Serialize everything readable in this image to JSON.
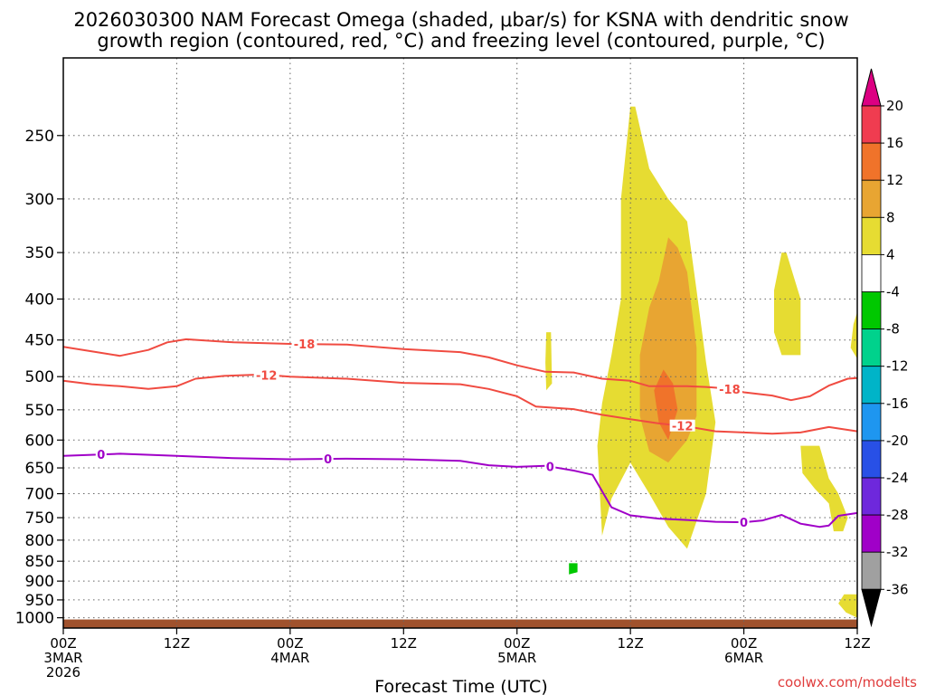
{
  "chart_data": {
    "type": "time-height cross section (contour)",
    "title_line1": "2026030300 NAM Forecast Omega (shaded, μbar/s) for KSNA with dendritic snow",
    "title_line2": "growth region (contoured, red, °C) and freezing level (contoured, purple, °C)",
    "xlabel": "Forecast Time (UTC)",
    "credit": "coolwx.com/modelts",
    "x_range_hours": [
      0,
      84
    ],
    "y_range_mb": [
      1030,
      200
    ],
    "x_ticks": [
      {
        "hour": 0,
        "lines": [
          "00Z",
          "3MAR",
          "2026"
        ]
      },
      {
        "hour": 12,
        "lines": [
          "12Z"
        ]
      },
      {
        "hour": 24,
        "lines": [
          "00Z",
          "4MAR"
        ]
      },
      {
        "hour": 36,
        "lines": [
          "12Z"
        ]
      },
      {
        "hour": 48,
        "lines": [
          "00Z",
          "5MAR"
        ]
      },
      {
        "hour": 60,
        "lines": [
          "12Z"
        ]
      },
      {
        "hour": 72,
        "lines": [
          "00Z",
          "6MAR"
        ]
      },
      {
        "hour": 84,
        "lines": [
          "12Z"
        ]
      }
    ],
    "y_ticks": [
      "250",
      "300",
      "350",
      "400",
      "450",
      "500",
      "550",
      "600",
      "650",
      "700",
      "750",
      "800",
      "850",
      "900",
      "950",
      "1000"
    ],
    "colorbar": {
      "labels": [
        "20",
        "16",
        "12",
        "8",
        "4",
        "-4",
        "-8",
        "-12",
        "-16",
        "-20",
        "-24",
        "-28",
        "-32",
        "-36"
      ],
      "colors": [
        "#f03c50",
        "#f0732a",
        "#e8a532",
        "#e6dc32",
        "#ffffff",
        "#00c800",
        "#00d28c",
        "#00b4c8",
        "#1e96f0",
        "#2850e6",
        "#6e28dc",
        "#a000c8",
        "#a0a0a0"
      ],
      "over_color": "#dc0082",
      "under_color": "#000000"
    },
    "contour_series": [
      {
        "name": "-18 °C isotherm",
        "label": "-18",
        "color": "#f04b41",
        "label_at_hour": [
          25.5,
          70.5
        ],
        "points": [
          [
            0,
            459
          ],
          [
            3,
            465
          ],
          [
            6,
            471
          ],
          [
            9,
            463
          ],
          [
            11,
            453
          ],
          [
            13,
            449
          ],
          [
            18,
            453
          ],
          [
            24,
            455
          ],
          [
            30,
            456
          ],
          [
            36,
            462
          ],
          [
            42,
            466
          ],
          [
            45,
            473
          ],
          [
            48,
            484
          ],
          [
            51,
            493
          ],
          [
            54,
            494
          ],
          [
            57,
            503
          ],
          [
            60,
            506
          ],
          [
            62,
            514
          ],
          [
            66,
            514
          ],
          [
            68,
            515
          ],
          [
            70,
            517
          ],
          [
            72,
            523
          ],
          [
            75,
            528
          ],
          [
            77,
            535
          ],
          [
            79,
            529
          ],
          [
            81,
            513
          ],
          [
            83,
            503
          ],
          [
            84,
            502
          ]
        ]
      },
      {
        "name": "-12 °C isotherm",
        "label": "-12",
        "color": "#f04b41",
        "label_at_hour": [
          21.5,
          65.5
        ],
        "points": [
          [
            0,
            506
          ],
          [
            3,
            511
          ],
          [
            6,
            514
          ],
          [
            9,
            518
          ],
          [
            12,
            514
          ],
          [
            14,
            503
          ],
          [
            17,
            499
          ],
          [
            21,
            497
          ],
          [
            24,
            500
          ],
          [
            30,
            503
          ],
          [
            36,
            509
          ],
          [
            42,
            511
          ],
          [
            45,
            518
          ],
          [
            48,
            529
          ],
          [
            50,
            545
          ],
          [
            54,
            549
          ],
          [
            57,
            558
          ],
          [
            60,
            565
          ],
          [
            63,
            572
          ],
          [
            66,
            577
          ],
          [
            69,
            585
          ],
          [
            72,
            587
          ],
          [
            75,
            589
          ],
          [
            78,
            587
          ],
          [
            81,
            578
          ],
          [
            84,
            585
          ]
        ]
      },
      {
        "name": "0 °C freezing level",
        "label": "0",
        "color": "#a000c8",
        "label_at_hour": [
          4,
          28,
          51.5,
          72
        ],
        "points": [
          [
            0,
            628
          ],
          [
            6,
            624
          ],
          [
            12,
            628
          ],
          [
            18,
            632
          ],
          [
            24,
            634
          ],
          [
            30,
            633
          ],
          [
            36,
            634
          ],
          [
            42,
            637
          ],
          [
            45,
            645
          ],
          [
            48,
            648
          ],
          [
            51,
            646
          ],
          [
            54,
            655
          ],
          [
            56,
            663
          ],
          [
            58,
            728
          ],
          [
            60,
            745
          ],
          [
            63,
            752
          ],
          [
            66,
            755
          ],
          [
            69,
            759
          ],
          [
            72,
            760
          ],
          [
            74,
            756
          ],
          [
            76,
            744
          ],
          [
            78,
            763
          ],
          [
            80,
            770
          ],
          [
            81,
            767
          ],
          [
            82,
            746
          ],
          [
            84,
            740
          ]
        ]
      }
    ],
    "omega_regions": [
      {
        "value_range": "4 to 8",
        "color": "#e6dc32",
        "polygon": [
          [
            60,
            230
          ],
          [
            60.5,
            230
          ],
          [
            62,
            275
          ],
          [
            64,
            300
          ],
          [
            66,
            320
          ],
          [
            67,
            390
          ],
          [
            68,
            480
          ],
          [
            69,
            570
          ],
          [
            68,
            700
          ],
          [
            66,
            820
          ],
          [
            64,
            770
          ],
          [
            62,
            700
          ],
          [
            60,
            640
          ],
          [
            58,
            710
          ],
          [
            57,
            790
          ],
          [
            56.5,
            610
          ],
          [
            57,
            540
          ],
          [
            58,
            470
          ],
          [
            59,
            400
          ],
          [
            59,
            300
          ]
        ]
      },
      {
        "value_range": "8 to 12",
        "color": "#e8a532",
        "polygon": [
          [
            64,
            335
          ],
          [
            65,
            345
          ],
          [
            66,
            370
          ],
          [
            67,
            460
          ],
          [
            67,
            560
          ],
          [
            66,
            600
          ],
          [
            64,
            640
          ],
          [
            62,
            620
          ],
          [
            61,
            560
          ],
          [
            61,
            470
          ],
          [
            62,
            410
          ],
          [
            63,
            380
          ]
        ]
      },
      {
        "value_range": "12 to 16",
        "color": "#f0732a",
        "polygon": [
          [
            63.5,
            490
          ],
          [
            64.5,
            510
          ],
          [
            65,
            550
          ],
          [
            64,
            600
          ],
          [
            63,
            570
          ],
          [
            62.5,
            520
          ]
        ]
      },
      {
        "value_range": "4 to 8",
        "color": "#e6dc32",
        "polygon": [
          [
            51.1,
            440
          ],
          [
            51.6,
            440
          ],
          [
            51.7,
            510
          ],
          [
            51.1,
            520
          ],
          [
            51,
            480
          ]
        ]
      },
      {
        "value_range": "4 to 8",
        "color": "#e6dc32",
        "polygon": [
          [
            76,
            350
          ],
          [
            76.5,
            350
          ],
          [
            78,
            400
          ],
          [
            78,
            470
          ],
          [
            76,
            470
          ],
          [
            75.2,
            440
          ],
          [
            75.2,
            390
          ]
        ]
      },
      {
        "value_range": "4 to 8",
        "color": "#e6dc32",
        "polygon": [
          [
            78,
            610
          ],
          [
            80,
            610
          ],
          [
            81,
            670
          ],
          [
            82,
            700
          ],
          [
            83,
            750
          ],
          [
            82.5,
            780
          ],
          [
            81.5,
            780
          ],
          [
            81,
            720
          ],
          [
            79.5,
            690
          ],
          [
            78.2,
            660
          ]
        ]
      },
      {
        "value_range": "4 to 8",
        "color": "#e6dc32",
        "polygon": [
          [
            84,
            415
          ],
          [
            84,
            475
          ],
          [
            83.3,
            460
          ],
          [
            83.6,
            430
          ]
        ]
      },
      {
        "value_range": "4 to 8",
        "color": "#e6dc32",
        "polygon": [
          [
            82.6,
            935
          ],
          [
            84,
            935
          ],
          [
            84,
            1000
          ],
          [
            82.8,
            985
          ],
          [
            82,
            960
          ]
        ]
      },
      {
        "value_range": "-4 to -8",
        "color": "#00c800",
        "polygon": [
          [
            53.5,
            855
          ],
          [
            54.4,
            855
          ],
          [
            54.4,
            877
          ],
          [
            53.5,
            883
          ]
        ]
      }
    ],
    "terrain": {
      "name": "surface / below ground",
      "color": "#a0522d",
      "top_mb": 1005
    }
  }
}
